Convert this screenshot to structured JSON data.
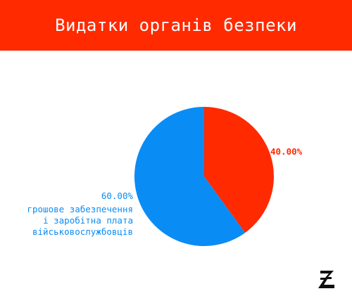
{
  "header": {
    "title": "Видатки органів безпеки"
  },
  "colors": {
    "header_bg": "#ff2a00",
    "slice_red": "#ff2a00",
    "slice_blue": "#0a8cf5",
    "logo": "#111111"
  },
  "logo": {
    "icon": "z-logo-icon"
  },
  "chart_data": {
    "type": "pie",
    "title": "Видатки органів безпеки",
    "start_angle_deg": 0,
    "direction": "clockwise",
    "slices": [
      {
        "value": 40.0,
        "percent_label": "40.00%",
        "label_lines": [],
        "color": "#ff2a00"
      },
      {
        "value": 60.0,
        "percent_label": "60.00%",
        "label_lines": [
          "грошове забезпечення",
          "і заробітна плата",
          "військовослужбовців"
        ],
        "color": "#0a8cf5"
      }
    ]
  }
}
